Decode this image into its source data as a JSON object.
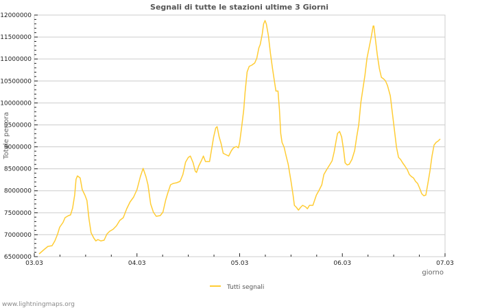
{
  "chart_data": {
    "type": "line",
    "title": "Segnali di tutte le stazioni ultime 3 Giorni",
    "xlabel": "giorno",
    "ylabel": "Totale per ora",
    "x_unit": "days since 03.03",
    "xlim": [
      0,
      4
    ],
    "ylim": [
      6500000,
      12000000
    ],
    "x_tick_labels": [
      "03.03",
      "04.03",
      "05.03",
      "06.03",
      "07.03"
    ],
    "y_tick_labels": [
      "6500000",
      "7000000",
      "7500000",
      "8000000",
      "8500000",
      "9000000",
      "9500000",
      "10000000",
      "10500000",
      "11000000",
      "11500000",
      "12000000"
    ],
    "grid": "horizontal",
    "legend_position": "bottom-center",
    "series": [
      {
        "name": "Tutti segnali",
        "color": "#ffcc33",
        "x": [
          0.047,
          0.1,
          0.133,
          0.173,
          0.2,
          0.227,
          0.247,
          0.28,
          0.3,
          0.333,
          0.353,
          0.373,
          0.393,
          0.407,
          0.42,
          0.447,
          0.467,
          0.493,
          0.513,
          0.533,
          0.553,
          0.58,
          0.6,
          0.62,
          0.647,
          0.68,
          0.707,
          0.733,
          0.767,
          0.8,
          0.833,
          0.867,
          0.9,
          0.933,
          0.967,
          1.0,
          1.033,
          1.06,
          1.087,
          1.107,
          1.133,
          1.16,
          1.187,
          1.227,
          1.253,
          1.28,
          1.3,
          1.327,
          1.353,
          1.387,
          1.42,
          1.447,
          1.473,
          1.5,
          1.52,
          1.547,
          1.567,
          1.58,
          1.6,
          1.627,
          1.647,
          1.667,
          1.687,
          1.707,
          1.727,
          1.747,
          1.767,
          1.78,
          1.8,
          1.82,
          1.84,
          1.867,
          1.893,
          1.92,
          1.94,
          1.967,
          1.987,
          2.0,
          2.02,
          2.04,
          2.053,
          2.073,
          2.093,
          2.12,
          2.147,
          2.167,
          2.187,
          2.2,
          2.22,
          2.233,
          2.247,
          2.26,
          2.28,
          2.3,
          2.32,
          2.34,
          2.353,
          2.373,
          2.387,
          2.4,
          2.413,
          2.433,
          2.453,
          2.473,
          2.5,
          2.52,
          2.533,
          2.553,
          2.573,
          2.593,
          2.613,
          2.64,
          2.66,
          2.68,
          2.713,
          2.747,
          2.773,
          2.8,
          2.82,
          2.847,
          2.88,
          2.9,
          2.92,
          2.94,
          2.953,
          2.973,
          2.993,
          3.013,
          3.027,
          3.047,
          3.067,
          3.093,
          3.12,
          3.14,
          3.16,
          3.18,
          3.2,
          3.22,
          3.24,
          3.26,
          3.28,
          3.3,
          3.307,
          3.32,
          3.34,
          3.36,
          3.38,
          3.4,
          3.42,
          3.44,
          3.467,
          3.487,
          3.507,
          3.527,
          3.547,
          3.567,
          3.587,
          3.607,
          3.633,
          3.653,
          3.673,
          3.693,
          3.713,
          3.733,
          3.753,
          3.773,
          3.793,
          3.813,
          3.833,
          3.853,
          3.873,
          3.893,
          3.913,
          3.933,
          3.953
        ],
        "values": [
          6563000,
          6672000,
          6734000,
          6750000,
          6859000,
          7014000,
          7170000,
          7279000,
          7388000,
          7435000,
          7451000,
          7606000,
          7902000,
          8261000,
          8339000,
          8292000,
          8027000,
          7902000,
          7778000,
          7357000,
          7046000,
          6921000,
          6859000,
          6890000,
          6859000,
          6874000,
          7014000,
          7077000,
          7123000,
          7201000,
          7326000,
          7388000,
          7591000,
          7747000,
          7856000,
          8027000,
          8323000,
          8510000,
          8323000,
          8136000,
          7700000,
          7513000,
          7419000,
          7435000,
          7513000,
          7793000,
          7949000,
          8136000,
          8167000,
          8183000,
          8214000,
          8370000,
          8650000,
          8759000,
          8791000,
          8635000,
          8448000,
          8417000,
          8557000,
          8681000,
          8791000,
          8666000,
          8666000,
          8666000,
          8946000,
          9227000,
          9429000,
          9460000,
          9227000,
          9071000,
          8853000,
          8822000,
          8791000,
          8915000,
          8977000,
          9009000,
          8977000,
          9102000,
          9460000,
          9850000,
          10239000,
          10707000,
          10831000,
          10863000,
          10909000,
          11018000,
          11252000,
          11330000,
          11564000,
          11797000,
          11875000,
          11797000,
          11533000,
          11128000,
          10785000,
          10473000,
          10271000,
          10271000,
          9850000,
          9305000,
          9102000,
          8993000,
          8791000,
          8604000,
          8214000,
          7902000,
          7669000,
          7622000,
          7560000,
          7622000,
          7669000,
          7638000,
          7591000,
          7669000,
          7669000,
          7902000,
          8012000,
          8136000,
          8370000,
          8479000,
          8604000,
          8681000,
          8884000,
          9149000,
          9305000,
          9351000,
          9227000,
          8915000,
          8635000,
          8588000,
          8604000,
          8713000,
          8915000,
          9227000,
          9507000,
          10006000,
          10317000,
          10629000,
          11018000,
          11252000,
          11486000,
          11751000,
          11751000,
          11486000,
          11096000,
          10785000,
          10582000,
          10551000,
          10504000,
          10395000,
          10162000,
          9772000,
          9383000,
          8993000,
          8759000,
          8713000,
          8635000,
          8572000,
          8479000,
          8370000,
          8323000,
          8292000,
          8214000,
          8167000,
          8058000,
          7934000,
          7887000,
          7902000,
          8167000,
          8448000,
          8791000,
          9040000,
          9102000,
          9133000,
          9180000
        ]
      }
    ]
  },
  "footer": "www.lightningmaps.org"
}
